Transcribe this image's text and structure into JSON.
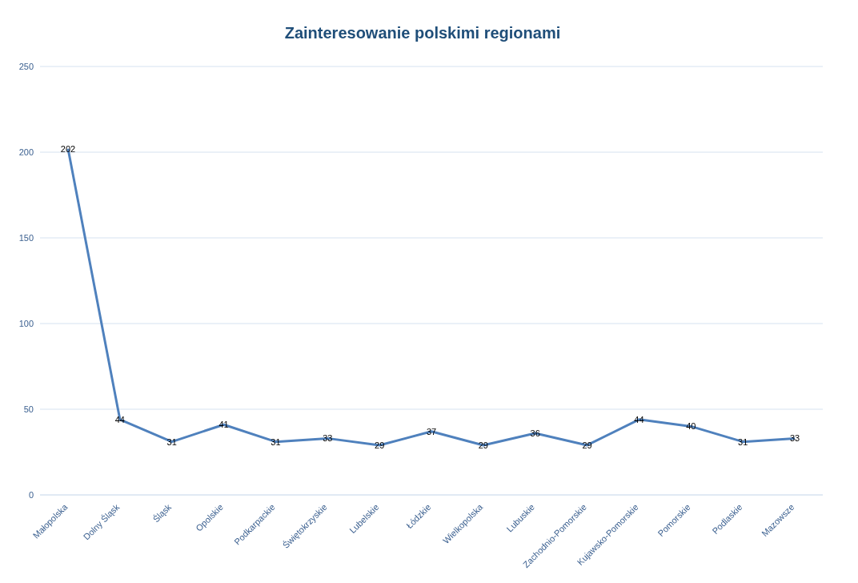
{
  "chart_data": {
    "type": "line",
    "title": "Zainteresowanie polskimi regionami",
    "categories": [
      "Małopolska",
      "Dolny Śląsk",
      "Śląsk",
      "Opolskie",
      "Podkarpackie",
      "Świętokrzyskie",
      "Lubelskie",
      "Łódzkie",
      "Wielkopolska",
      "Lubuskie",
      "Zachodnio-Pomorskie",
      "Kujawsko-Pomorskie",
      "Pomorskie",
      "Podlaskie",
      "Mazowsze"
    ],
    "series": [
      {
        "color": "#4f81bd",
        "values": [
          202,
          44,
          31,
          41,
          31,
          33,
          29,
          37,
          29,
          36,
          29,
          44,
          40,
          31,
          33
        ]
      }
    ],
    "ylim": [
      0,
      250
    ],
    "yticks": [
      0,
      50,
      100,
      150,
      200,
      250
    ],
    "grid": "y",
    "data_labels": true,
    "marker": "none",
    "line_style": "solid"
  }
}
